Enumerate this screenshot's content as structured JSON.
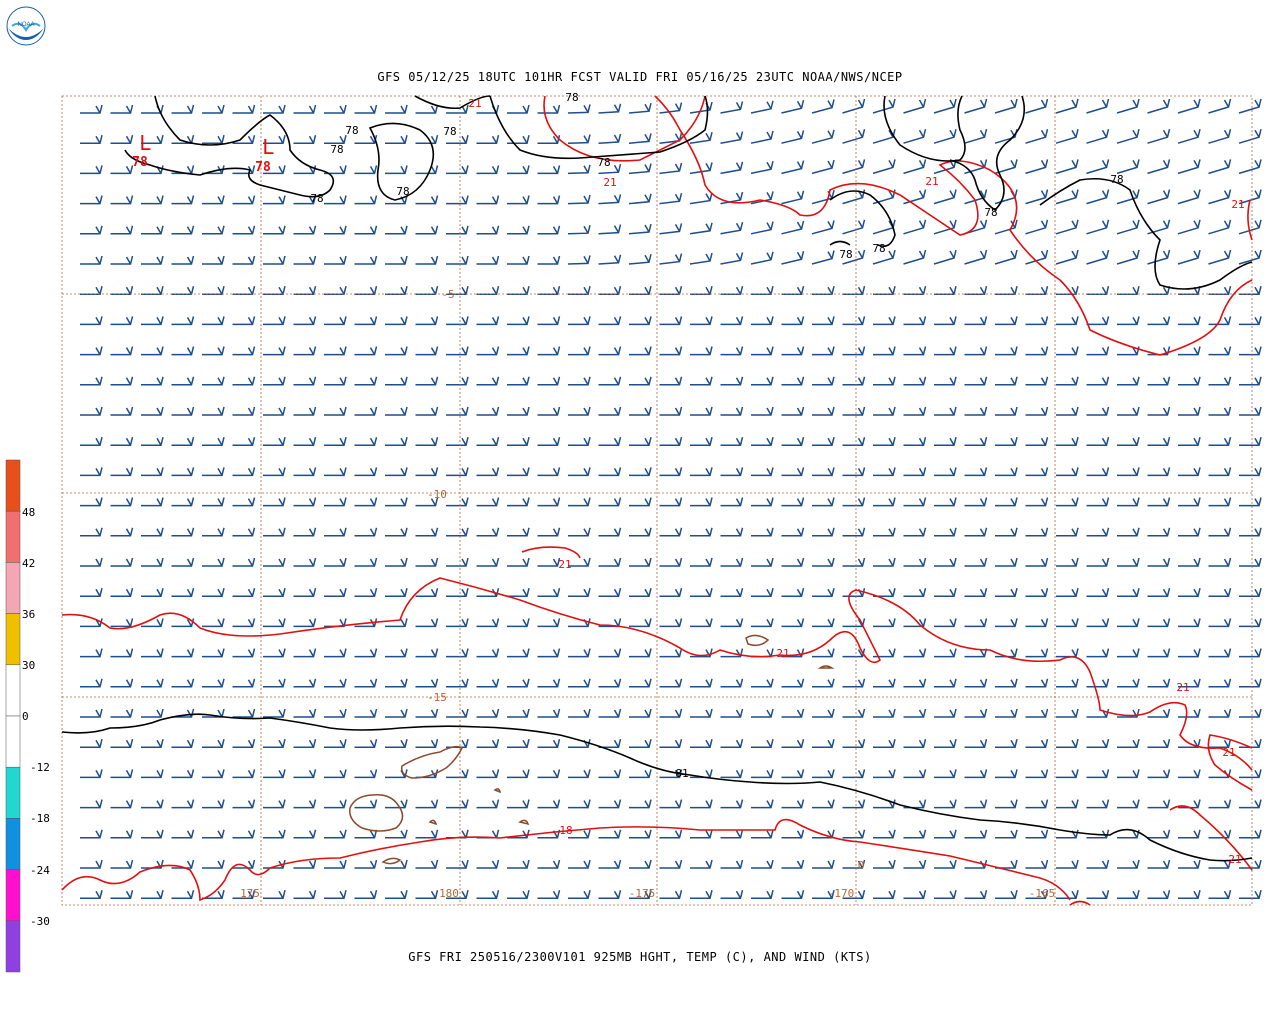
{
  "header": {
    "logo_text": "NOAA",
    "top_title": "GFS 05/12/25 18UTC 101HR FCST VALID FRI 05/16/25 23UTC NOAA/NWS/NCEP",
    "bottom_title": "GFS FRI 250516/2300V101 925MB HGHT, TEMP (C), AND WIND (KTS)"
  },
  "map": {
    "lat_labels": [
      "-5",
      "-10",
      "-15"
    ],
    "lon_labels": [
      "175",
      "180",
      "-175",
      "-170",
      "-165"
    ],
    "extra_label": "0",
    "low_markers": [
      {
        "symbol": "L",
        "value": "78"
      },
      {
        "symbol": "L",
        "value": "78"
      }
    ],
    "height_labels": [
      "78",
      "78",
      "78",
      "78",
      "78",
      "78",
      "78",
      "78",
      "78",
      "78",
      "78",
      "81"
    ],
    "temp_labels": [
      "21",
      "21",
      "21",
      "21",
      "21",
      "21",
      "21",
      "21",
      "18",
      "21"
    ],
    "colors": {
      "height_contour": "#000000",
      "temp_contour": "#e01010",
      "wind_barb": "#1f4e8c",
      "grid": "#b5673a",
      "land": "#8b4a2b"
    }
  },
  "colorbar": {
    "labels": [
      "48",
      "42",
      "36",
      "30",
      "0",
      "-12",
      "-18",
      "-24",
      "-30"
    ],
    "colors": [
      "#e8501a",
      "#f07070",
      "#f4a6b4",
      "#f0c000",
      "#ffffff",
      "#ffffff",
      "#20d8d0",
      "#1090e0",
      "#ff10d0",
      "#9040e0"
    ]
  }
}
